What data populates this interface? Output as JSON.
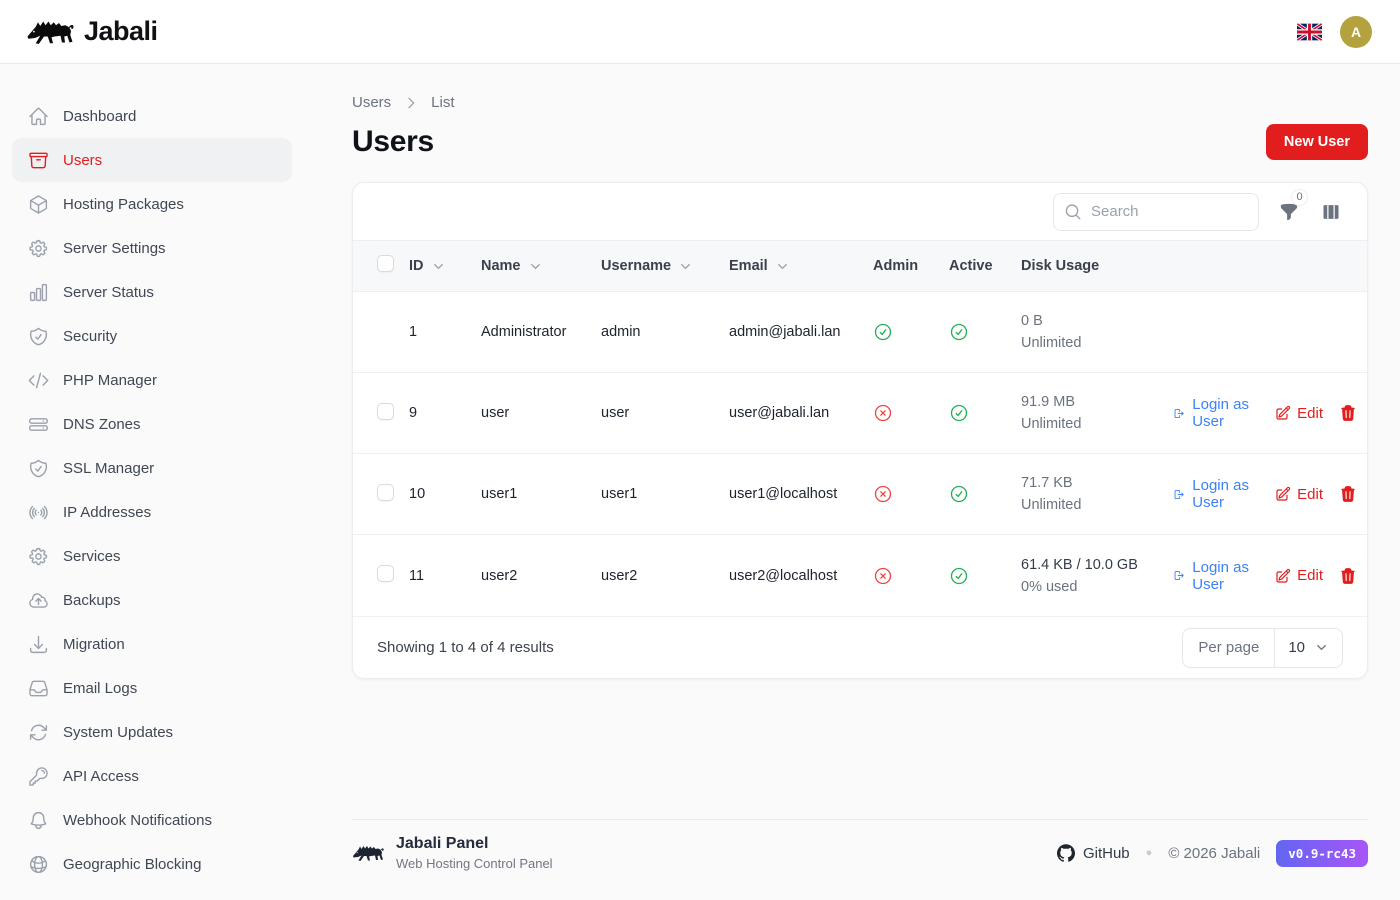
{
  "brand": {
    "name": "Jabali",
    "logo_icon": "boar-icon"
  },
  "topbar": {
    "language_flag_icon": "uk-flag-icon",
    "avatar_initial": "A"
  },
  "sidebar": {
    "items": [
      {
        "label": "Dashboard",
        "icon": "home",
        "active": false
      },
      {
        "label": "Users",
        "icon": "archive-box",
        "active": true
      },
      {
        "label": "Hosting Packages",
        "icon": "cube",
        "active": false
      },
      {
        "label": "Server Settings",
        "icon": "gear",
        "active": false
      },
      {
        "label": "Server Status",
        "icon": "chart-bar",
        "active": false
      },
      {
        "label": "Security",
        "icon": "shield-check",
        "active": false
      },
      {
        "label": "PHP Manager",
        "icon": "code",
        "active": false
      },
      {
        "label": "DNS Zones",
        "icon": "server-stack",
        "active": false
      },
      {
        "label": "SSL Manager",
        "icon": "shield-check",
        "active": false
      },
      {
        "label": "IP Addresses",
        "icon": "signal",
        "active": false
      },
      {
        "label": "Services",
        "icon": "gear",
        "active": false
      },
      {
        "label": "Backups",
        "icon": "cloud-up",
        "active": false
      },
      {
        "label": "Migration",
        "icon": "download",
        "active": false
      },
      {
        "label": "Email Logs",
        "icon": "inbox",
        "active": false
      },
      {
        "label": "System Updates",
        "icon": "refresh",
        "active": false
      },
      {
        "label": "API Access",
        "icon": "key",
        "active": false
      },
      {
        "label": "Webhook Notifications",
        "icon": "bell",
        "active": false
      },
      {
        "label": "Geographic Blocking",
        "icon": "globe",
        "active": false
      }
    ]
  },
  "breadcrumb": {
    "root": "Users",
    "current": "List"
  },
  "page": {
    "title": "Users",
    "primary_action": "New User"
  },
  "table": {
    "search": {
      "placeholder": "Search"
    },
    "filter_badge_count": "0",
    "columns": [
      {
        "label": "ID",
        "sortable": true
      },
      {
        "label": "Name",
        "sortable": true
      },
      {
        "label": "Username",
        "sortable": true
      },
      {
        "label": "Email",
        "sortable": true
      },
      {
        "label": "Admin",
        "sortable": false
      },
      {
        "label": "Active",
        "sortable": false
      },
      {
        "label": "Disk Usage",
        "sortable": false
      }
    ],
    "rows": [
      {
        "id": "1",
        "name": "Administrator",
        "username": "admin",
        "email": "admin@jabali.lan",
        "is_admin": true,
        "is_active": true,
        "disk_line1": "0 B",
        "disk_line2": "Unlimited",
        "disk_line1_emphasis": false,
        "selectable": false,
        "has_actions": false
      },
      {
        "id": "9",
        "name": "user",
        "username": "user",
        "email": "user@jabali.lan",
        "is_admin": false,
        "is_active": true,
        "disk_line1": "91.9 MB",
        "disk_line2": "Unlimited",
        "disk_line1_emphasis": false,
        "selectable": true,
        "has_actions": true
      },
      {
        "id": "10",
        "name": "user1",
        "username": "user1",
        "email": "user1@localhost",
        "is_admin": false,
        "is_active": true,
        "disk_line1": "71.7 KB",
        "disk_line2": "Unlimited",
        "disk_line1_emphasis": false,
        "selectable": true,
        "has_actions": true
      },
      {
        "id": "11",
        "name": "user2",
        "username": "user2",
        "email": "user2@localhost",
        "is_admin": false,
        "is_active": true,
        "disk_line1": "61.4 KB / 10.0 GB",
        "disk_line2": "0% used",
        "disk_line1_emphasis": true,
        "selectable": true,
        "has_actions": true
      }
    ],
    "row_actions": {
      "login": "Login as User",
      "edit": "Edit",
      "delete_icon": "trash-icon"
    },
    "pagination": {
      "summary": "Showing 1 to 4 of 4 results",
      "per_page_label": "Per page",
      "per_page_value": "10"
    }
  },
  "footer": {
    "brand": "Jabali Panel",
    "subtitle": "Web Hosting Control Panel",
    "github_label": "GitHub",
    "copyright": "© 2026 Jabali",
    "version": "v0.9-rc43"
  },
  "colors": {
    "accent_red": "#e11d1d",
    "link_blue": "#3b82f6",
    "success_green": "#21b055",
    "danger_red": "#ef4444",
    "avatar_gold": "#b3a23d",
    "badge_gradient_start": "#6366f1",
    "badge_gradient_end": "#a855f7"
  }
}
